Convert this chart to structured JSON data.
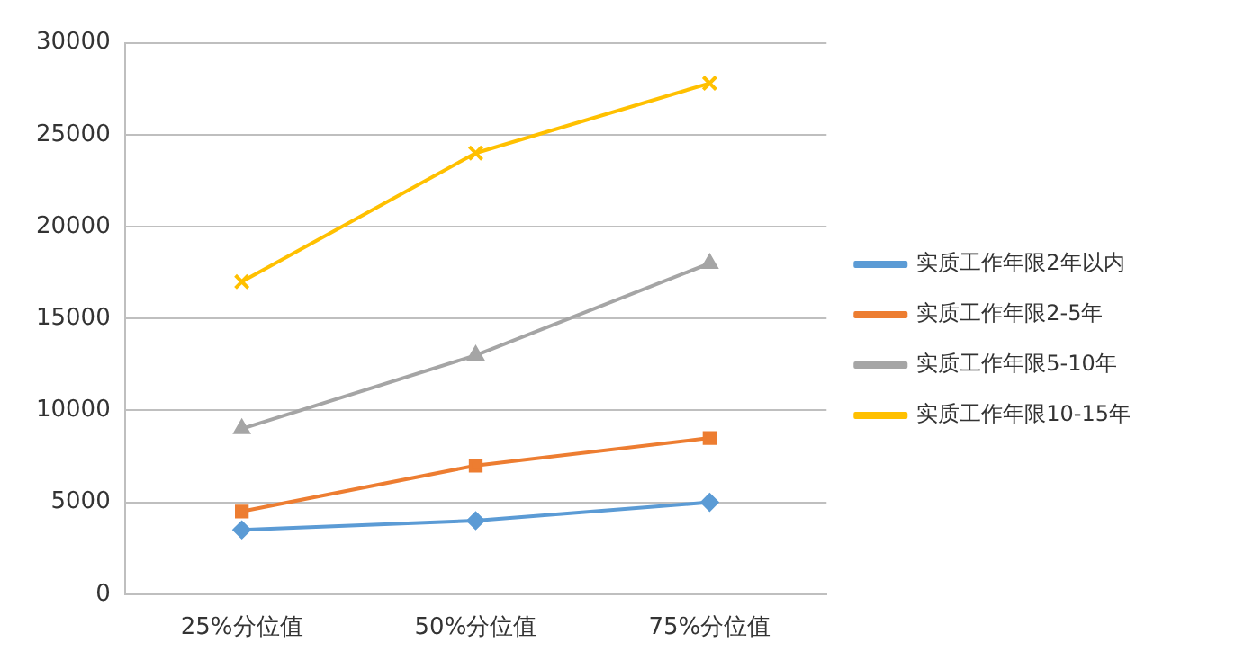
{
  "chart_data": {
    "type": "line",
    "categories": [
      "25%分位值",
      "50%分位值",
      "75%分位值"
    ],
    "series": [
      {
        "name": "实质工作年限2年以内",
        "color": "#5b9bd5",
        "marker": "diamond",
        "values": [
          3500,
          4000,
          5000
        ]
      },
      {
        "name": "实质工作年限2-5年",
        "color": "#ed7d31",
        "marker": "square",
        "values": [
          4500,
          7000,
          8500
        ]
      },
      {
        "name": "实质工作年限5-10年",
        "color": "#a5a5a5",
        "marker": "triangle",
        "values": [
          9000,
          13000,
          18000
        ]
      },
      {
        "name": "实质工作年限10-15年",
        "color": "#ffc000",
        "marker": "cross",
        "values": [
          17000,
          24000,
          27800
        ]
      }
    ],
    "ylim": [
      0,
      30000
    ],
    "yticks": [
      0,
      5000,
      10000,
      15000,
      20000,
      25000,
      30000
    ],
    "grid": "y",
    "legend": "right"
  }
}
